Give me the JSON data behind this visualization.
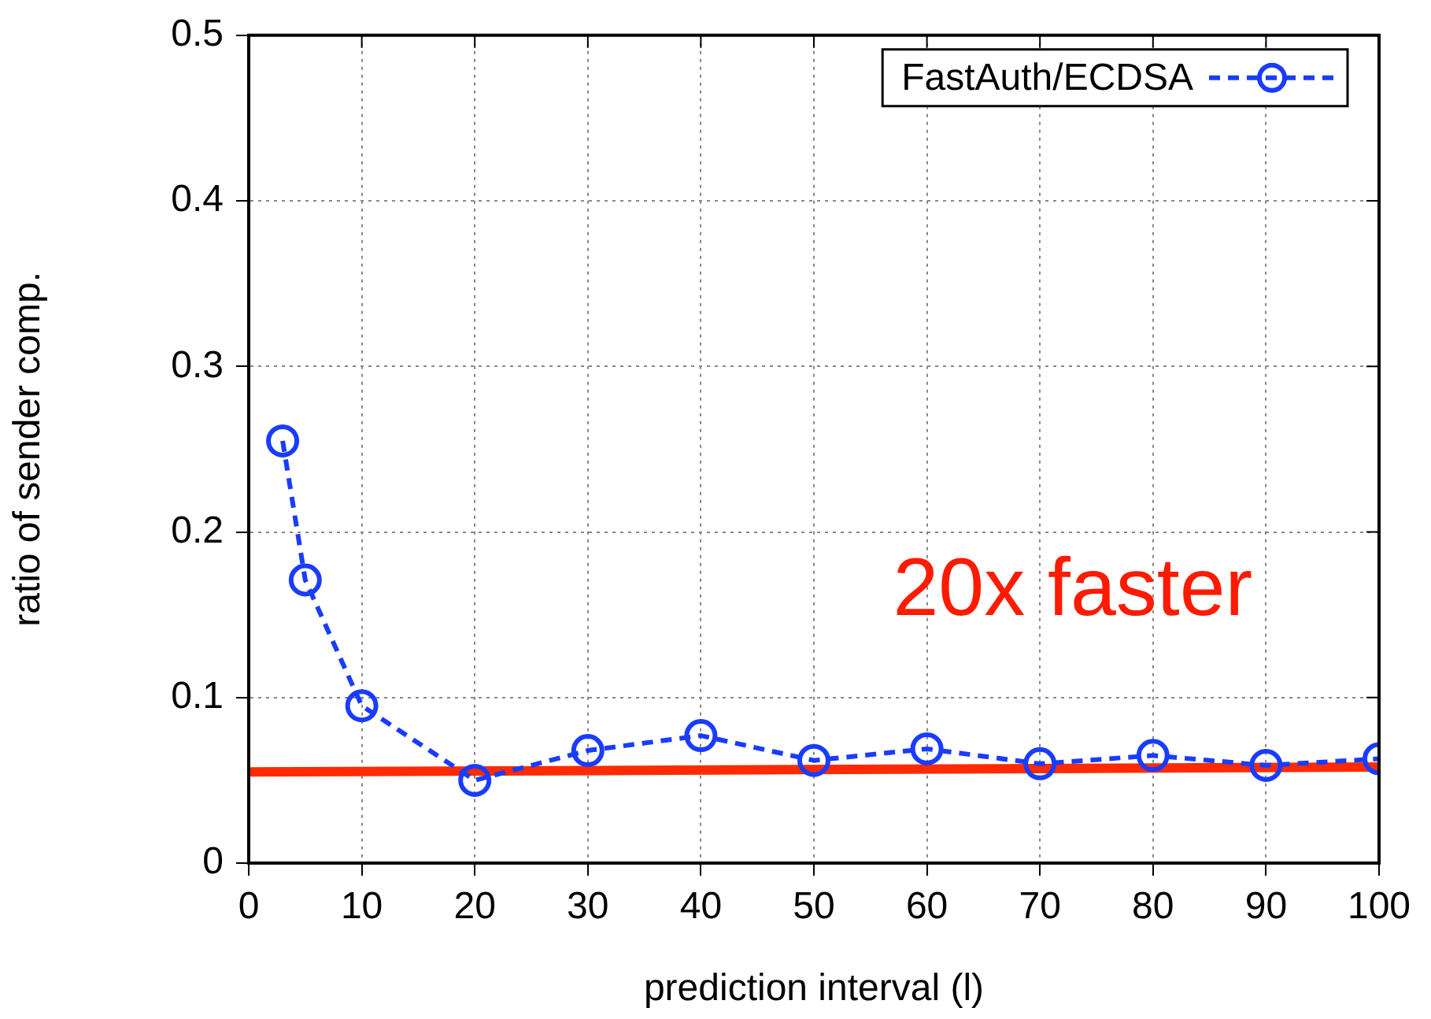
{
  "chart_data": {
    "type": "line",
    "xlabel": "prediction interval (l)",
    "ylabel": "ratio of sender comp.",
    "x": [
      3,
      5,
      10,
      20,
      30,
      40,
      50,
      60,
      70,
      80,
      90,
      100
    ],
    "series": [
      {
        "name": "FastAuth/ECDSA",
        "color": "#1a3cff",
        "marker": "circle",
        "line_style": "dashed",
        "values": [
          0.255,
          0.171,
          0.095,
          0.05,
          0.068,
          0.077,
          0.062,
          0.069,
          0.06,
          0.065,
          0.059,
          0.063
        ]
      },
      {
        "type": "line",
        "color": "#ff2a00",
        "marker": "none",
        "line_style": "solid",
        "x": [
          0,
          100
        ],
        "values": [
          0.055,
          0.058
        ]
      }
    ],
    "xlim": [
      0,
      100
    ],
    "xticks": [
      0,
      10,
      20,
      30,
      40,
      50,
      60,
      70,
      80,
      90,
      100
    ],
    "ylim": [
      0,
      0.5
    ],
    "yticks": [
      0,
      0.1,
      0.2,
      0.3,
      0.4,
      0.5
    ],
    "grid": true,
    "legend": "top right",
    "annotations": [
      "20x faster"
    ]
  }
}
